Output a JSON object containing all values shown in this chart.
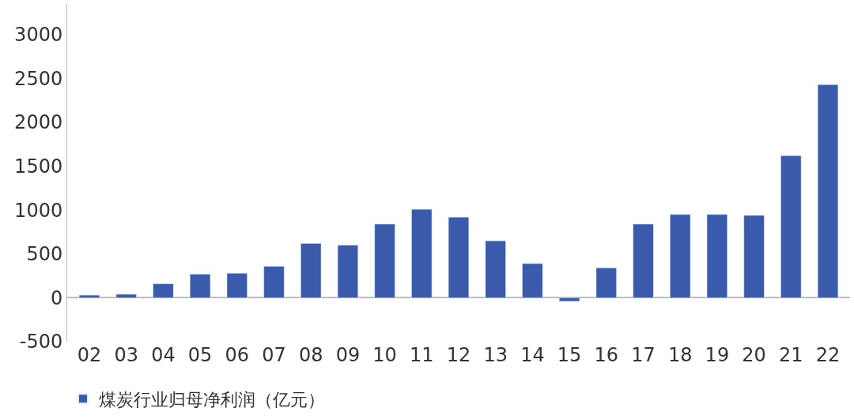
{
  "chart_data": {
    "type": "bar",
    "categories": [
      "02",
      "03",
      "04",
      "05",
      "06",
      "07",
      "08",
      "09",
      "10",
      "11",
      "12",
      "13",
      "14",
      "15",
      "16",
      "17",
      "18",
      "19",
      "20",
      "21",
      "22"
    ],
    "series": [
      {
        "name": "煤炭行业归母净利润（亿元）",
        "color": "#3a5bab",
        "values": [
          30,
          40,
          160,
          270,
          280,
          360,
          620,
          600,
          840,
          1010,
          920,
          650,
          390,
          -40,
          340,
          840,
          950,
          950,
          940,
          1620,
          2430
        ]
      }
    ],
    "ylim": [
      -500,
      3350
    ],
    "yticks": [
      -500,
      0,
      500,
      1000,
      1500,
      2000,
      2500,
      3000
    ],
    "legend": "bottom left"
  }
}
